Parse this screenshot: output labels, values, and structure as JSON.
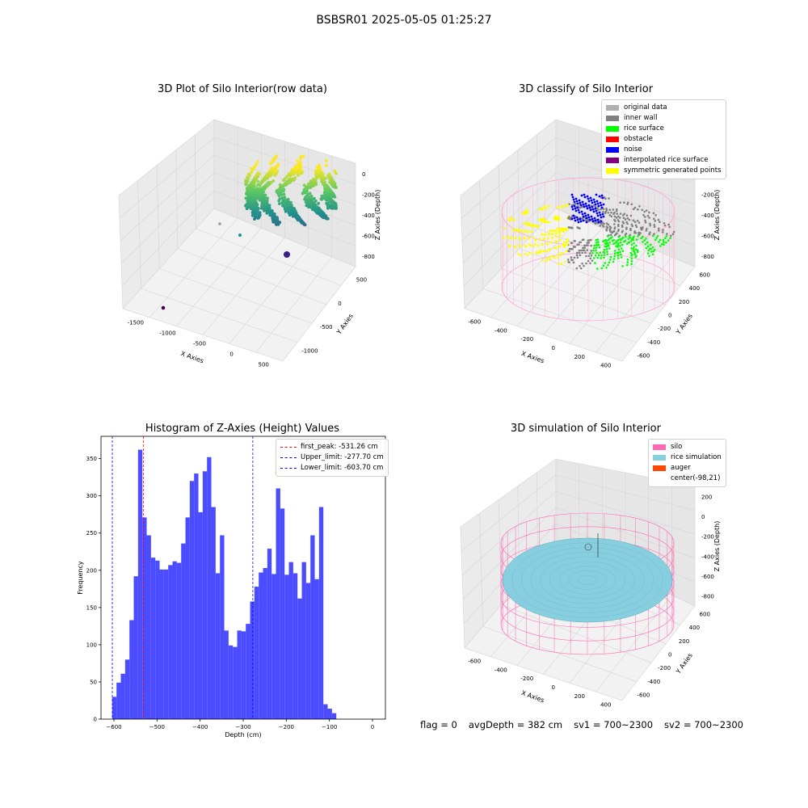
{
  "suptitle": "BSBSR01 2025-05-05 01:25:27",
  "footer": {
    "flag": "flag = 0",
    "avg": "avgDepth = 382 cm",
    "sv1": "sv1 = 700~2300",
    "sv2": "sv2 = 700~2300"
  },
  "colors": {
    "hist_bar": "#4b4bff",
    "first_peak": "#ff0000",
    "limit": "#0000ff",
    "silo": "#ff69b4",
    "rice_sim": "#87cedf",
    "auger": "#ff4500"
  },
  "plot1": {
    "title": "3D Plot of Silo Interior(row data)",
    "xlabel": "X Axies",
    "ylabel": "Y Axies",
    "zlabel": "Z Axies (Depth)",
    "xticks": [
      "-1500",
      "-1000",
      "-500",
      "0",
      "500"
    ],
    "yticks": [
      "500",
      "0",
      "-500",
      "-1000"
    ],
    "zticks": [
      "0",
      "-200",
      "-400",
      "-600",
      "-800"
    ],
    "colormap": "viridis"
  },
  "plot2": {
    "title": "3D classify of Silo Interior",
    "xlabel": "X Axies",
    "ylabel": "Y Axies",
    "zlabel": "Z Axies (Depth)",
    "xticks": [
      "-600",
      "-400",
      "-200",
      "0",
      "200",
      "400"
    ],
    "yticks": [
      "600",
      "400",
      "200",
      "0",
      "-200",
      "-400",
      "-600"
    ],
    "zticks": [
      "0",
      "-200",
      "-400",
      "-600",
      "-800"
    ],
    "legend": [
      {
        "label": "original data",
        "color": "#b0b0b0"
      },
      {
        "label": "inner wall",
        "color": "#808080"
      },
      {
        "label": "rice surface",
        "color": "#00ff00"
      },
      {
        "label": "obstacle",
        "color": "#ff0000"
      },
      {
        "label": "noise",
        "color": "#0000ff"
      },
      {
        "label": "interpolated rice surface",
        "color": "#800080"
      },
      {
        "label": "symmetric generated points",
        "color": "#ffff00"
      }
    ]
  },
  "plot4": {
    "title": "3D simulation of Silo Interior",
    "xlabel": "X Axies",
    "ylabel": "Y Axies",
    "zlabel": "Z Axies (Depth)",
    "xticks": [
      "-600",
      "-400",
      "-200",
      "0",
      "200",
      "400"
    ],
    "yticks": [
      "600",
      "400",
      "200",
      "0",
      "-200",
      "-400",
      "-600"
    ],
    "zticks": [
      "200",
      "0",
      "-200",
      "-400",
      "-600",
      "-800"
    ],
    "legend": [
      {
        "label": "silo",
        "color": "#ff69b4"
      },
      {
        "label": "rice simulation",
        "color": "#87cedf"
      },
      {
        "label": "auger",
        "color": "#ff4500"
      },
      {
        "label": "center(-98,21)",
        "color": ""
      }
    ]
  },
  "chart_data": {
    "type": "bar",
    "title": "Histogram of Z-Axies (Height) Values",
    "xlabel": "Depth (cm)",
    "ylabel": "Frequency",
    "xlim": [
      -630,
      30
    ],
    "ylim": [
      0,
      380
    ],
    "xticks": [
      -600,
      -500,
      -400,
      -300,
      -200,
      -100,
      0
    ],
    "yticks": [
      0,
      50,
      100,
      150,
      200,
      250,
      300,
      350
    ],
    "bin_start": -604,
    "bin_width": 10,
    "values": [
      30,
      49,
      61,
      80,
      133,
      192,
      362,
      271,
      247,
      217,
      213,
      201,
      201,
      207,
      212,
      210,
      236,
      271,
      320,
      330,
      278,
      333,
      352,
      285,
      196,
      247,
      119,
      99,
      97,
      119,
      118,
      128,
      158,
      178,
      197,
      203,
      229,
      195,
      310,
      283,
      194,
      211,
      196,
      162,
      211,
      183,
      247,
      188,
      285,
      20,
      14,
      8
    ],
    "vlines": [
      {
        "label": "first_peak: -531.26 cm",
        "x": -531.26
      },
      {
        "label": "Upper_limit: -277.70 cm",
        "x": -277.7
      },
      {
        "label": "Lower_limit: -603.70 cm",
        "x": -603.7
      }
    ]
  }
}
